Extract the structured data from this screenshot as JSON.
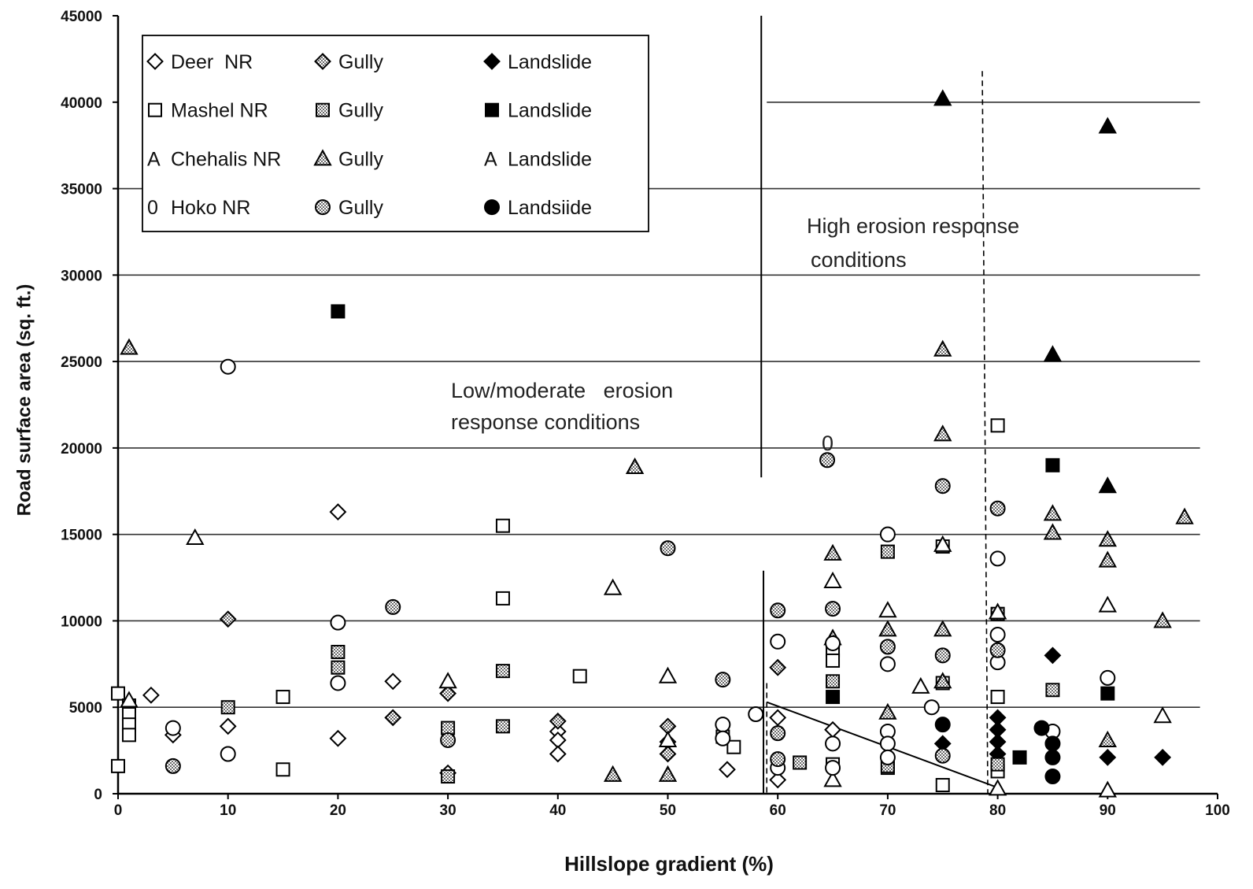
{
  "chart_data": {
    "type": "scatter",
    "title": "",
    "xlabel": "Hillslope gradient (%)",
    "ylabel": "Road surface area (sq. ft.)",
    "xlim": [
      0,
      100
    ],
    "ylim": [
      0,
      45000
    ],
    "x_ticks": [
      "0",
      "10",
      "20",
      "30",
      "40",
      "50",
      "60",
      "70",
      "80",
      "90",
      "100"
    ],
    "y_ticks": [
      "0",
      "5000",
      "10000",
      "15000",
      "20000",
      "25000",
      "30000",
      "35000",
      "40000",
      "45000"
    ],
    "grid": true,
    "legend_position": "top-left",
    "colors": {
      "ink": "#000000",
      "hatch": "#6b6b6b",
      "grid": "#333333"
    },
    "series": [
      {
        "name": "Deer  NR",
        "marker": "diamond-open",
        "points": [
          [
            3,
            5700
          ],
          [
            5,
            3400
          ],
          [
            10,
            3900
          ],
          [
            20,
            16300
          ],
          [
            20,
            3200
          ],
          [
            25,
            6500
          ],
          [
            30,
            1200
          ],
          [
            40,
            3600
          ],
          [
            40,
            3100
          ],
          [
            40,
            2300
          ],
          [
            50,
            3000
          ],
          [
            55.4,
            1400
          ],
          [
            60,
            4400
          ],
          [
            60,
            800
          ],
          [
            65,
            3700
          ]
        ]
      },
      {
        "name": "Gully",
        "marker": "diamond-hatched",
        "points": [
          [
            10,
            10100
          ],
          [
            25,
            4400
          ],
          [
            30,
            5800
          ],
          [
            40,
            4200
          ],
          [
            50,
            3900
          ],
          [
            50,
            2300
          ],
          [
            60,
            7300
          ]
        ]
      },
      {
        "name": "Landslide",
        "marker": "diamond-filled",
        "points": [
          [
            75,
            2900
          ],
          [
            80,
            4400
          ],
          [
            80,
            3700
          ],
          [
            80,
            3000
          ],
          [
            80,
            2300
          ],
          [
            85,
            8000
          ],
          [
            90,
            2100
          ],
          [
            95,
            2100
          ]
        ]
      },
      {
        "name": "Mashel NR",
        "marker": "square-open",
        "points": [
          [
            0,
            5800
          ],
          [
            0,
            1600
          ],
          [
            1,
            5100
          ],
          [
            1,
            4600
          ],
          [
            1,
            4000
          ],
          [
            1,
            3400
          ],
          [
            15,
            5600
          ],
          [
            15,
            1400
          ],
          [
            35,
            15500
          ],
          [
            35,
            11300
          ],
          [
            42,
            6800
          ],
          [
            55,
            3300
          ],
          [
            56,
            2700
          ],
          [
            65,
            8300
          ],
          [
            65,
            7700
          ],
          [
            65,
            1700
          ],
          [
            70,
            1500
          ],
          [
            75,
            14300
          ],
          [
            75,
            6400
          ],
          [
            75,
            500
          ],
          [
            80,
            21300
          ],
          [
            80,
            5600
          ],
          [
            80,
            1300
          ]
        ]
      },
      {
        "name": "Gully",
        "marker": "square-hatched",
        "points": [
          [
            10,
            5000
          ],
          [
            20,
            8200
          ],
          [
            20,
            7300
          ],
          [
            30,
            3800
          ],
          [
            30,
            1000
          ],
          [
            35,
            7100
          ],
          [
            35,
            3900
          ],
          [
            62,
            1800
          ],
          [
            65,
            6500
          ],
          [
            70,
            14000
          ],
          [
            70,
            1600
          ],
          [
            80,
            10400
          ],
          [
            80,
            1700
          ],
          [
            85,
            6000
          ]
        ]
      },
      {
        "name": "Landslide",
        "marker": "square-filled",
        "points": [
          [
            20,
            27900
          ],
          [
            65,
            5600
          ],
          [
            82,
            2100
          ],
          [
            85,
            19000
          ],
          [
            90,
            5800
          ]
        ]
      },
      {
        "name": "Chehalis NR",
        "legend_prefix": "A",
        "marker": "triangle-open",
        "points": [
          [
            1,
            5400
          ],
          [
            7,
            14800
          ],
          [
            30,
            6500
          ],
          [
            45,
            11900
          ],
          [
            50,
            6800
          ],
          [
            50,
            3100
          ],
          [
            65,
            12300
          ],
          [
            65,
            800
          ],
          [
            70,
            10600
          ],
          [
            73,
            6200
          ],
          [
            75,
            14400
          ],
          [
            80,
            10500
          ],
          [
            80,
            300
          ],
          [
            90,
            10900
          ],
          [
            90,
            200
          ],
          [
            95,
            4500
          ]
        ]
      },
      {
        "name": "Gully",
        "marker": "triangle-hatched",
        "points": [
          [
            1,
            25800
          ],
          [
            45,
            1100
          ],
          [
            47,
            18900
          ],
          [
            50,
            1100
          ],
          [
            65,
            13900
          ],
          [
            65,
            9000
          ],
          [
            70,
            9500
          ],
          [
            70,
            4700
          ],
          [
            75,
            25700
          ],
          [
            75,
            20800
          ],
          [
            75,
            9500
          ],
          [
            75,
            6500
          ],
          [
            85,
            16200
          ],
          [
            85,
            15100
          ],
          [
            90,
            14700
          ],
          [
            90,
            13500
          ],
          [
            90,
            3100
          ],
          [
            95,
            10000
          ],
          [
            97,
            16000
          ]
        ]
      },
      {
        "name": "Landslide",
        "legend_prefix": "A",
        "marker": "triangle-filled",
        "points": [
          [
            75,
            40200
          ],
          [
            85,
            25400
          ],
          [
            90,
            38600
          ],
          [
            90,
            17800
          ]
        ]
      },
      {
        "name": "Hoko NR",
        "legend_prefix": "0",
        "marker": "circle-open",
        "points": [
          [
            5,
            3800
          ],
          [
            10,
            24700
          ],
          [
            10,
            2300
          ],
          [
            20,
            9900
          ],
          [
            20,
            6400
          ],
          [
            55,
            4000
          ],
          [
            55,
            3200
          ],
          [
            58,
            4600
          ],
          [
            60,
            8800
          ],
          [
            60,
            1500
          ],
          [
            65,
            8700
          ],
          [
            65,
            2900
          ],
          [
            65,
            1500
          ],
          [
            70,
            15000
          ],
          [
            70,
            7500
          ],
          [
            70,
            3600
          ],
          [
            70,
            2900
          ],
          [
            70,
            2100
          ],
          [
            74,
            5000
          ],
          [
            80,
            13600
          ],
          [
            80,
            9200
          ],
          [
            80,
            7600
          ],
          [
            85,
            3600
          ],
          [
            90,
            6700
          ]
        ]
      },
      {
        "name": "Gully",
        "marker": "circle-hatched",
        "points": [
          [
            5,
            1600
          ],
          [
            25,
            10800
          ],
          [
            30,
            3100
          ],
          [
            50,
            14200
          ],
          [
            55,
            6600
          ],
          [
            60,
            10600
          ],
          [
            60,
            3500
          ],
          [
            60,
            2000
          ],
          [
            64.5,
            19300
          ],
          [
            65,
            10700
          ],
          [
            70,
            8500
          ],
          [
            75,
            17800
          ],
          [
            75,
            8000
          ],
          [
            75,
            2200
          ],
          [
            80,
            16500
          ],
          [
            80,
            8300
          ]
        ]
      },
      {
        "name": "Landsiide",
        "marker": "circle-filled",
        "points": [
          [
            75,
            4000
          ],
          [
            84,
            3800
          ],
          [
            85,
            2900
          ],
          [
            85,
            2100
          ],
          [
            85,
            1000
          ]
        ]
      }
    ],
    "boundary_lines": [
      {
        "style": "solid",
        "from": [
          58.5,
          45000
        ],
        "to": [
          58.5,
          18300
        ]
      },
      {
        "style": "solid",
        "from": [
          58.7,
          12900
        ],
        "to": [
          58.7,
          0
        ]
      },
      {
        "style": "dashed",
        "from": [
          59.0,
          6400
        ],
        "to": [
          59.0,
          0
        ]
      },
      {
        "style": "dashed",
        "from": [
          78.6,
          41800
        ],
        "to": [
          79.1,
          0
        ]
      },
      {
        "style": "solid",
        "from": [
          59.0,
          5300
        ],
        "to": [
          79.8,
          400
        ]
      }
    ],
    "annotations": {
      "high_erosion": [
        "High erosion response",
        "conditions"
      ],
      "low_moderate_erosion": [
        "Low/moderate   erosion",
        "response conditions"
      ],
      "isolated_label": "0"
    }
  }
}
